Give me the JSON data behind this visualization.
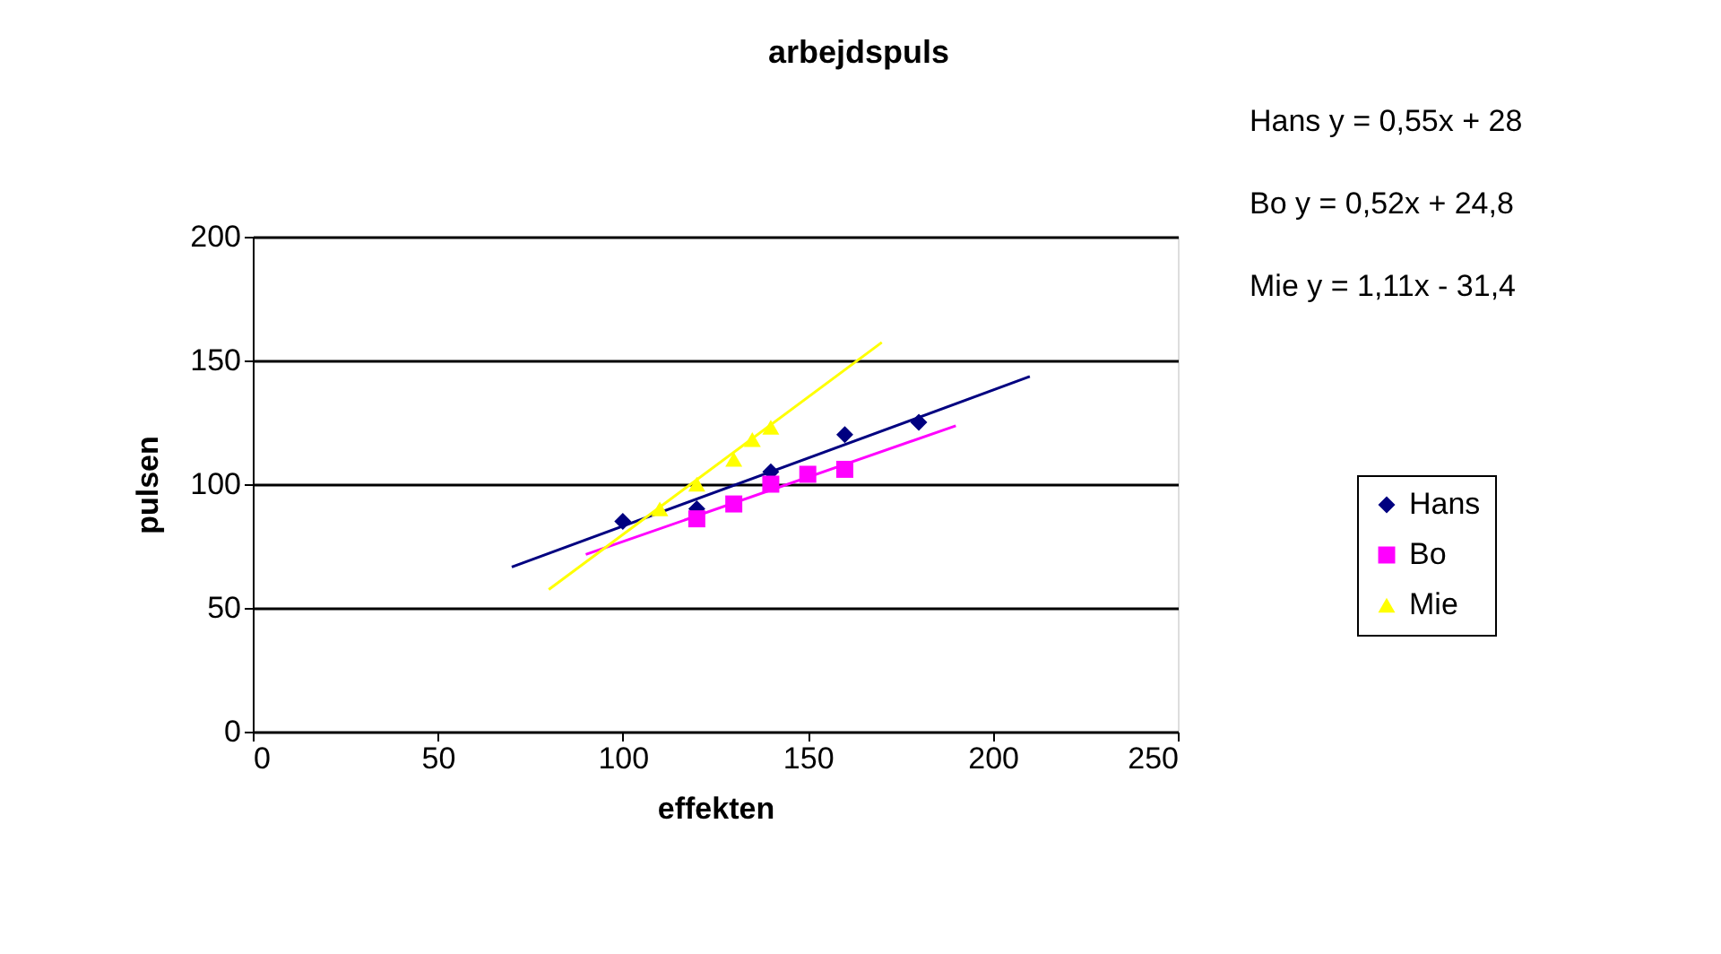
{
  "chart_data": {
    "type": "scatter",
    "title": "arbejdspuls",
    "xlabel": "effekten",
    "ylabel": "pulsen",
    "xlim": [
      0,
      250
    ],
    "xticks": [
      0,
      50,
      100,
      150,
      200,
      250
    ],
    "ylim": [
      0,
      200
    ],
    "yticks": [
      0,
      50,
      100,
      150,
      200
    ],
    "grid": "y",
    "legend": "right",
    "annotations": [
      "Hans y = 0,55x + 28",
      "Bo y = 0,52x + 24,8",
      "Mie y = 1,11x - 31,4"
    ],
    "series": [
      {
        "name": "Hans",
        "marker": "diamond",
        "color": "#000080",
        "x": [
          100,
          120,
          140,
          160,
          180
        ],
        "values": [
          85,
          90,
          105,
          120,
          125
        ]
      },
      {
        "name": "Bo",
        "marker": "square",
        "color": "#ff00ff",
        "x": [
          120,
          130,
          140,
          150,
          160
        ],
        "values": [
          86,
          92,
          100,
          104,
          106
        ]
      },
      {
        "name": "Mie",
        "marker": "triangle",
        "color": "#ffff00",
        "x": [
          110,
          120,
          130,
          135,
          140
        ],
        "values": [
          90,
          100,
          110,
          118,
          123
        ]
      },
      {
        "type": "line",
        "marker": "none",
        "color": "#000080",
        "x": [
          70,
          210
        ],
        "values": [
          66.5,
          143.5
        ]
      },
      {
        "type": "line",
        "marker": "none",
        "color": "#ff00ff",
        "x": [
          90,
          190
        ],
        "values": [
          71.6,
          123.6
        ]
      },
      {
        "type": "line",
        "marker": "none",
        "color": "#ffff00",
        "x": [
          80,
          170
        ],
        "values": [
          57.4,
          157.3
        ]
      }
    ]
  }
}
